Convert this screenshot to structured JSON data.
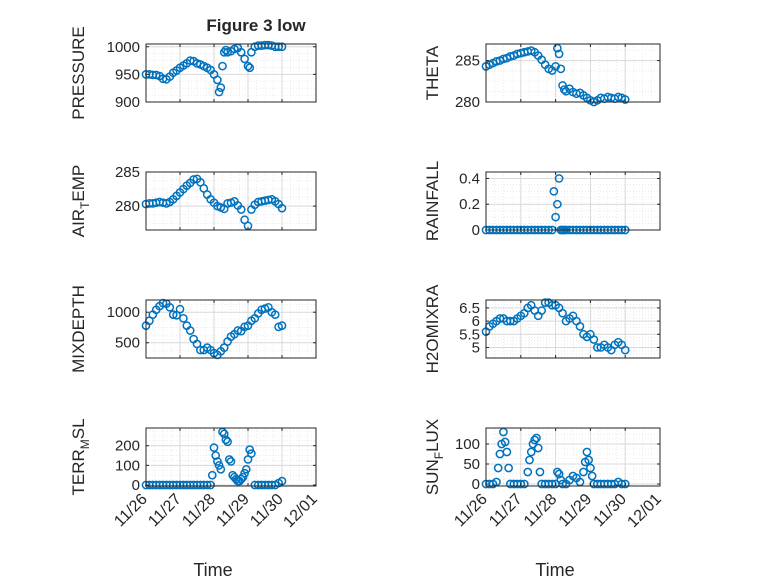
{
  "figure_title": "Figure 3 low",
  "colors": {
    "marker": "#0072BD",
    "axis": "#262626",
    "grid": "#d9d9d9",
    "background": "#ffffff"
  },
  "chart_data": [
    {
      "type": "scatter",
      "ylabel": "PRESSURE",
      "ylabel_sub": "",
      "ylabel_tail": "",
      "title": "Figure 3 low",
      "xlim": [
        0,
        5
      ],
      "ylim": [
        900,
        1005
      ],
      "yticks": [
        900,
        950,
        1000
      ],
      "xticks": [
        0,
        1,
        2,
        3,
        4,
        5
      ],
      "xticklabels": [
        "11/26",
        "11/27",
        "11/28",
        "11/29",
        "11/30",
        "12/01"
      ],
      "xlabel": "",
      "x": [
        0,
        0.1,
        0.2,
        0.3,
        0.4,
        0.5,
        0.6,
        0.7,
        0.8,
        0.9,
        1.0,
        1.1,
        1.2,
        1.3,
        1.4,
        1.5,
        1.6,
        1.7,
        1.8,
        1.9,
        2.0,
        2.1,
        2.15,
        2.2,
        2.25,
        2.3,
        2.35,
        2.4,
        2.5,
        2.6,
        2.7,
        2.8,
        2.9,
        3.0,
        3.05,
        3.1,
        3.2,
        3.3,
        3.4,
        3.5,
        3.6,
        3.7,
        3.8,
        3.9,
        4.0
      ],
      "y": [
        950,
        950,
        949,
        949,
        947,
        942,
        941,
        946,
        953,
        957,
        962,
        966,
        970,
        975,
        974,
        970,
        968,
        965,
        962,
        958,
        950,
        940,
        918,
        926,
        965,
        990,
        994,
        990,
        992,
        996,
        998,
        990,
        978,
        965,
        962,
        990,
        1000,
        1002,
        1002,
        1003,
        1003,
        1002,
        1000,
        1000,
        1000
      ]
    },
    {
      "type": "scatter",
      "ylabel": "THETA",
      "ylabel_sub": "",
      "ylabel_tail": "",
      "title": "",
      "xlim": [
        0,
        5
      ],
      "ylim": [
        280,
        287
      ],
      "yticks": [
        280,
        285
      ],
      "xticks": [
        0,
        1,
        2,
        3,
        4,
        5
      ],
      "xticklabels": [
        "11/26",
        "11/27",
        "11/28",
        "11/29",
        "11/30",
        "12/01"
      ],
      "xlabel": "",
      "x": [
        0,
        0.1,
        0.2,
        0.3,
        0.4,
        0.5,
        0.6,
        0.7,
        0.8,
        0.9,
        1.0,
        1.1,
        1.2,
        1.3,
        1.4,
        1.5,
        1.6,
        1.7,
        1.8,
        1.9,
        2.0,
        2.05,
        2.1,
        2.15,
        2.2,
        2.25,
        2.3,
        2.4,
        2.5,
        2.6,
        2.7,
        2.8,
        2.9,
        3.0,
        3.1,
        3.2,
        3.3,
        3.4,
        3.5,
        3.6,
        3.7,
        3.8,
        3.9,
        4.0
      ],
      "y": [
        284.3,
        284.5,
        284.7,
        284.9,
        285.0,
        285.2,
        285.3,
        285.5,
        285.6,
        285.8,
        285.9,
        286.0,
        286.1,
        286.2,
        286.0,
        285.6,
        285.1,
        284.5,
        284.0,
        283.8,
        284.3,
        286.5,
        285.8,
        284.0,
        282.0,
        281.5,
        281.3,
        281.6,
        281.2,
        281.0,
        281.1,
        280.8,
        280.5,
        280.2,
        280.0,
        280.2,
        280.5,
        280.4,
        280.6,
        280.5,
        280.4,
        280.6,
        280.5,
        280.3
      ]
    },
    {
      "type": "scatter",
      "ylabel": "AIR",
      "ylabel_sub": "T",
      "ylabel_tail": "EMP",
      "title": "",
      "xlim": [
        0,
        5
      ],
      "ylim": [
        276.5,
        285
      ],
      "yticks": [
        280,
        285
      ],
      "xticks": [
        0,
        1,
        2,
        3,
        4,
        5
      ],
      "xticklabels": [
        "11/26",
        "11/27",
        "11/28",
        "11/29",
        "11/30",
        "12/01"
      ],
      "xlabel": "",
      "x": [
        0,
        0.1,
        0.2,
        0.3,
        0.4,
        0.5,
        0.6,
        0.7,
        0.8,
        0.9,
        1.0,
        1.1,
        1.2,
        1.3,
        1.4,
        1.5,
        1.6,
        1.7,
        1.8,
        1.9,
        2.0,
        2.1,
        2.2,
        2.3,
        2.4,
        2.5,
        2.6,
        2.7,
        2.8,
        2.9,
        3.0,
        3.1,
        3.2,
        3.3,
        3.4,
        3.5,
        3.6,
        3.7,
        3.8,
        3.9,
        4.0
      ],
      "y": [
        280.3,
        280.4,
        280.4,
        280.5,
        280.6,
        280.5,
        280.4,
        280.6,
        281.0,
        281.5,
        282.0,
        282.5,
        283.0,
        283.4,
        283.9,
        284.0,
        283.5,
        282.6,
        281.7,
        281.0,
        280.5,
        280.0,
        279.8,
        279.6,
        280.4,
        280.5,
        280.7,
        280.1,
        279.5,
        278.0,
        277.1,
        279.5,
        280.2,
        280.6,
        280.7,
        280.8,
        280.9,
        281.0,
        280.7,
        280.3,
        279.7
      ]
    },
    {
      "type": "scatter",
      "ylabel": "RAINFALL",
      "ylabel_sub": "",
      "ylabel_tail": "",
      "title": "",
      "xlim": [
        0,
        5
      ],
      "ylim": [
        0,
        0.45
      ],
      "yticks": [
        0,
        0.2,
        0.4
      ],
      "xticks": [
        0,
        1,
        2,
        3,
        4,
        5
      ],
      "xticklabels": [
        "11/26",
        "11/27",
        "11/28",
        "11/29",
        "11/30",
        "12/01"
      ],
      "xlabel": "",
      "x": [
        0,
        0.1,
        0.2,
        0.3,
        0.4,
        0.5,
        0.6,
        0.7,
        0.8,
        0.9,
        1.0,
        1.1,
        1.2,
        1.3,
        1.4,
        1.5,
        1.6,
        1.7,
        1.8,
        1.9,
        1.95,
        2.0,
        2.05,
        2.1,
        2.15,
        2.2,
        2.25,
        2.3,
        2.4,
        2.5,
        2.6,
        2.7,
        2.8,
        2.9,
        3.0,
        3.1,
        3.2,
        3.3,
        3.4,
        3.5,
        3.6,
        3.7,
        3.8,
        3.9,
        4.0
      ],
      "y": [
        0,
        0,
        0,
        0,
        0,
        0,
        0,
        0,
        0,
        0,
        0,
        0,
        0,
        0,
        0,
        0,
        0,
        0,
        0,
        0,
        0.3,
        0.1,
        0.2,
        0.4,
        0,
        0,
        0,
        0,
        0,
        0,
        0,
        0,
        0,
        0,
        0,
        0,
        0,
        0,
        0,
        0,
        0,
        0,
        0,
        0,
        0
      ]
    },
    {
      "type": "scatter",
      "ylabel": "MIXDEPTH",
      "ylabel_sub": "",
      "ylabel_tail": "",
      "title": "",
      "xlim": [
        0,
        5
      ],
      "ylim": [
        250,
        1200
      ],
      "yticks": [
        500,
        1000
      ],
      "xticks": [
        0,
        1,
        2,
        3,
        4,
        5
      ],
      "xticklabels": [
        "11/26",
        "11/27",
        "11/28",
        "11/29",
        "11/30",
        "12/01"
      ],
      "xlabel": "",
      "x": [
        0,
        0.1,
        0.2,
        0.3,
        0.4,
        0.5,
        0.6,
        0.7,
        0.8,
        0.9,
        1.0,
        1.1,
        1.2,
        1.3,
        1.4,
        1.5,
        1.6,
        1.7,
        1.8,
        1.9,
        2.0,
        2.1,
        2.2,
        2.3,
        2.4,
        2.5,
        2.6,
        2.7,
        2.8,
        2.9,
        3.0,
        3.1,
        3.2,
        3.3,
        3.4,
        3.5,
        3.6,
        3.7,
        3.8,
        3.9,
        4.0
      ],
      "y": [
        780,
        860,
        960,
        1040,
        1100,
        1150,
        1140,
        1080,
        960,
        950,
        1050,
        900,
        780,
        700,
        560,
        480,
        380,
        380,
        420,
        380,
        330,
        300,
        360,
        420,
        520,
        600,
        640,
        700,
        690,
        760,
        780,
        860,
        900,
        980,
        1040,
        1060,
        1080,
        1000,
        960,
        760,
        780
      ]
    },
    {
      "type": "scatter",
      "ylabel": "H2OMIXRA",
      "ylabel_sub": "",
      "ylabel_tail": "",
      "title": "",
      "xlim": [
        0,
        5
      ],
      "ylim": [
        4.6,
        6.8
      ],
      "yticks": [
        5,
        5.5,
        6,
        6.5
      ],
      "xticks": [
        0,
        1,
        2,
        3,
        4,
        5
      ],
      "xticklabels": [
        "11/26",
        "11/27",
        "11/28",
        "11/29",
        "11/30",
        "12/01"
      ],
      "xlabel": "",
      "x": [
        0,
        0.1,
        0.2,
        0.3,
        0.4,
        0.5,
        0.6,
        0.7,
        0.8,
        0.9,
        1.0,
        1.1,
        1.2,
        1.3,
        1.4,
        1.5,
        1.6,
        1.7,
        1.8,
        1.9,
        2.0,
        2.1,
        2.2,
        2.3,
        2.4,
        2.5,
        2.6,
        2.7,
        2.8,
        2.9,
        3.0,
        3.1,
        3.2,
        3.3,
        3.4,
        3.5,
        3.6,
        3.7,
        3.8,
        3.9,
        4.0
      ],
      "y": [
        5.6,
        5.8,
        5.9,
        6.0,
        6.1,
        6.1,
        6.0,
        6.0,
        6.0,
        6.1,
        6.2,
        6.3,
        6.5,
        6.6,
        6.4,
        6.2,
        6.4,
        6.7,
        6.7,
        6.6,
        6.6,
        6.5,
        6.3,
        6.0,
        6.1,
        6.2,
        6.0,
        5.8,
        5.5,
        5.4,
        5.5,
        5.3,
        5.0,
        5.0,
        5.1,
        5.0,
        4.9,
        5.1,
        5.2,
        5.1,
        4.9
      ]
    },
    {
      "type": "scatter",
      "ylabel": "TERR",
      "ylabel_sub": "M",
      "ylabel_tail": "SL",
      "title": "",
      "xlim": [
        0,
        5
      ],
      "ylim": [
        -5,
        290
      ],
      "yticks": [
        0,
        100,
        200
      ],
      "xticks": [
        0,
        1,
        2,
        3,
        4,
        5
      ],
      "xticklabels": [
        "11/26",
        "11/27",
        "11/28",
        "11/29",
        "11/30",
        "12/01"
      ],
      "xlabel": "Time",
      "x": [
        0,
        0.1,
        0.2,
        0.3,
        0.4,
        0.5,
        0.6,
        0.7,
        0.8,
        0.9,
        1.0,
        1.1,
        1.2,
        1.3,
        1.4,
        1.5,
        1.6,
        1.7,
        1.8,
        1.9,
        1.95,
        2.0,
        2.05,
        2.1,
        2.15,
        2.2,
        2.25,
        2.3,
        2.35,
        2.4,
        2.45,
        2.5,
        2.55,
        2.6,
        2.65,
        2.7,
        2.75,
        2.8,
        2.85,
        2.9,
        2.95,
        3.0,
        3.05,
        3.1,
        3.2,
        3.3,
        3.4,
        3.5,
        3.6,
        3.7,
        3.8,
        3.9,
        4.0
      ],
      "y": [
        0,
        0,
        0,
        0,
        0,
        0,
        0,
        0,
        0,
        0,
        0,
        0,
        0,
        0,
        0,
        0,
        0,
        0,
        0,
        0,
        50,
        190,
        150,
        120,
        100,
        80,
        270,
        260,
        230,
        220,
        130,
        120,
        50,
        40,
        30,
        20,
        20,
        30,
        40,
        60,
        80,
        130,
        180,
        160,
        0,
        0,
        0,
        0,
        0,
        0,
        0,
        10,
        20
      ]
    },
    {
      "type": "scatter",
      "ylabel": "SUN",
      "ylabel_sub": "F",
      "ylabel_tail": "LUX",
      "title": "",
      "xlim": [
        0,
        5
      ],
      "ylim": [
        -5,
        140
      ],
      "yticks": [
        0,
        50,
        100
      ],
      "xticks": [
        0,
        1,
        2,
        3,
        4,
        5
      ],
      "xticklabels": [
        "11/26",
        "11/27",
        "11/28",
        "11/29",
        "11/30",
        "12/01"
      ],
      "xlabel": "Time",
      "x": [
        0,
        0.1,
        0.2,
        0.3,
        0.35,
        0.4,
        0.45,
        0.5,
        0.55,
        0.6,
        0.65,
        0.7,
        0.8,
        0.9,
        1.0,
        1.1,
        1.2,
        1.25,
        1.3,
        1.35,
        1.4,
        1.45,
        1.5,
        1.55,
        1.6,
        1.7,
        1.8,
        1.9,
        2.0,
        2.05,
        2.1,
        2.15,
        2.2,
        2.3,
        2.4,
        2.5,
        2.6,
        2.7,
        2.8,
        2.85,
        2.9,
        2.95,
        3.0,
        3.05,
        3.1,
        3.2,
        3.3,
        3.4,
        3.5,
        3.6,
        3.7,
        3.8,
        3.9,
        4.0
      ],
      "y": [
        0,
        0,
        0,
        5,
        40,
        75,
        100,
        130,
        105,
        80,
        40,
        0,
        0,
        0,
        0,
        0,
        30,
        60,
        80,
        100,
        110,
        115,
        90,
        30,
        0,
        0,
        0,
        0,
        0,
        30,
        25,
        10,
        0,
        0,
        10,
        20,
        15,
        5,
        30,
        55,
        80,
        60,
        40,
        20,
        0,
        0,
        0,
        0,
        0,
        0,
        0,
        5,
        0,
        0
      ]
    }
  ]
}
